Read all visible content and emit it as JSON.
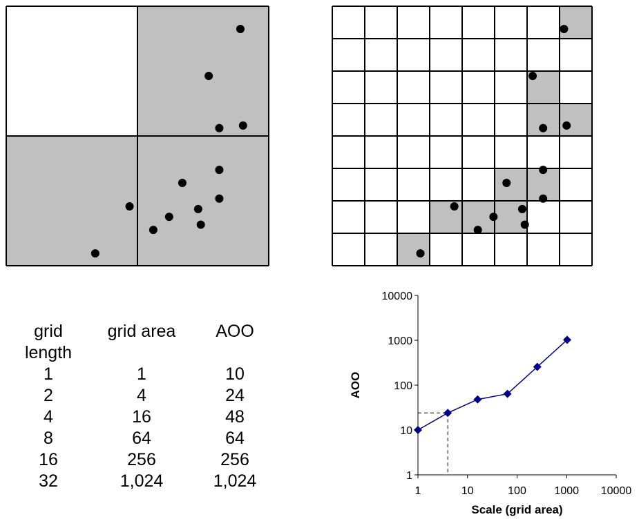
{
  "grid_coarse": {
    "divisions": 2,
    "filled_color": "#c0c0c0",
    "occupied_cells": [
      [
        1,
        0
      ],
      [
        0,
        1
      ],
      [
        1,
        1
      ]
    ],
    "points": [
      [
        0.89,
        0.09
      ],
      [
        0.77,
        0.27
      ],
      [
        0.81,
        0.47
      ],
      [
        0.9,
        0.46
      ],
      [
        0.81,
        0.63
      ],
      [
        0.67,
        0.68
      ],
      [
        0.47,
        0.77
      ],
      [
        0.81,
        0.74
      ],
      [
        0.73,
        0.78
      ],
      [
        0.62,
        0.81
      ],
      [
        0.74,
        0.84
      ],
      [
        0.56,
        0.86
      ],
      [
        0.34,
        0.95
      ]
    ]
  },
  "grid_fine": {
    "divisions": 8,
    "filled_color": "#c0c0c0",
    "occupied_cells": [
      [
        7,
        0
      ],
      [
        6,
        2
      ],
      [
        6,
        3
      ],
      [
        7,
        3
      ],
      [
        5,
        5
      ],
      [
        6,
        5
      ],
      [
        3,
        6
      ],
      [
        4,
        6
      ],
      [
        5,
        6
      ],
      [
        2,
        7
      ]
    ]
  },
  "table": {
    "headers": [
      "grid\nlength",
      "grid area",
      "AOO"
    ],
    "rows": [
      [
        "1",
        "1",
        "10"
      ],
      [
        "2",
        "4",
        "24"
      ],
      [
        "4",
        "16",
        "48"
      ],
      [
        "8",
        "64",
        "64"
      ],
      [
        "16",
        "256",
        "256"
      ],
      [
        "32",
        "1,024",
        "1,024"
      ]
    ]
  },
  "chart_data": {
    "type": "line",
    "xlabel": "Scale (grid area)",
    "ylabel": "AOO",
    "x_scale": "log",
    "y_scale": "log",
    "xlim": [
      1,
      10000
    ],
    "ylim": [
      1,
      10000
    ],
    "x_ticks": [
      "1",
      "10",
      "100",
      "1000",
      "10000"
    ],
    "y_ticks": [
      "1",
      "10",
      "100",
      "1000",
      "10000"
    ],
    "series": [
      {
        "x": [
          1,
          4,
          16,
          64,
          256,
          1024
        ],
        "y": [
          10,
          24,
          48,
          64,
          256,
          1024
        ],
        "color": "#00008b"
      }
    ],
    "reference_point": {
      "x": 4,
      "y": 24
    },
    "grid": false
  }
}
